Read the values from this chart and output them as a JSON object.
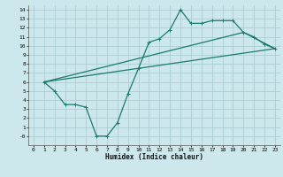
{
  "xlabel": "Humidex (Indice chaleur)",
  "background_color": "#cce8ec",
  "grid_color": "#aacdd4",
  "line_color": "#1a7a6e",
  "xlim": [
    -0.5,
    23.5
  ],
  "ylim": [
    -1.0,
    14.5
  ],
  "xticks": [
    0,
    1,
    2,
    3,
    4,
    5,
    6,
    7,
    8,
    9,
    10,
    11,
    12,
    13,
    14,
    15,
    16,
    17,
    18,
    19,
    20,
    21,
    22,
    23
  ],
  "yticks": [
    0,
    1,
    2,
    3,
    4,
    5,
    6,
    7,
    8,
    9,
    10,
    11,
    12,
    13,
    14
  ],
  "series1_x": [
    1,
    2,
    3,
    4,
    5,
    6,
    7,
    8,
    9,
    10,
    11,
    12,
    13,
    14,
    15,
    16,
    17,
    18,
    19,
    20,
    21,
    22,
    23
  ],
  "series1_y": [
    6.0,
    5.0,
    3.5,
    3.5,
    3.2,
    0.0,
    0.0,
    1.5,
    4.7,
    7.5,
    10.4,
    10.8,
    11.8,
    14.0,
    12.5,
    12.5,
    12.8,
    12.8,
    12.8,
    11.5,
    11.0,
    10.2,
    9.7
  ],
  "series2_x": [
    1,
    23
  ],
  "series2_y": [
    6.0,
    9.7
  ],
  "series3_x": [
    1,
    20,
    23
  ],
  "series3_y": [
    6.0,
    11.5,
    9.7
  ],
  "marker_size": 2.5,
  "line_width": 0.9
}
